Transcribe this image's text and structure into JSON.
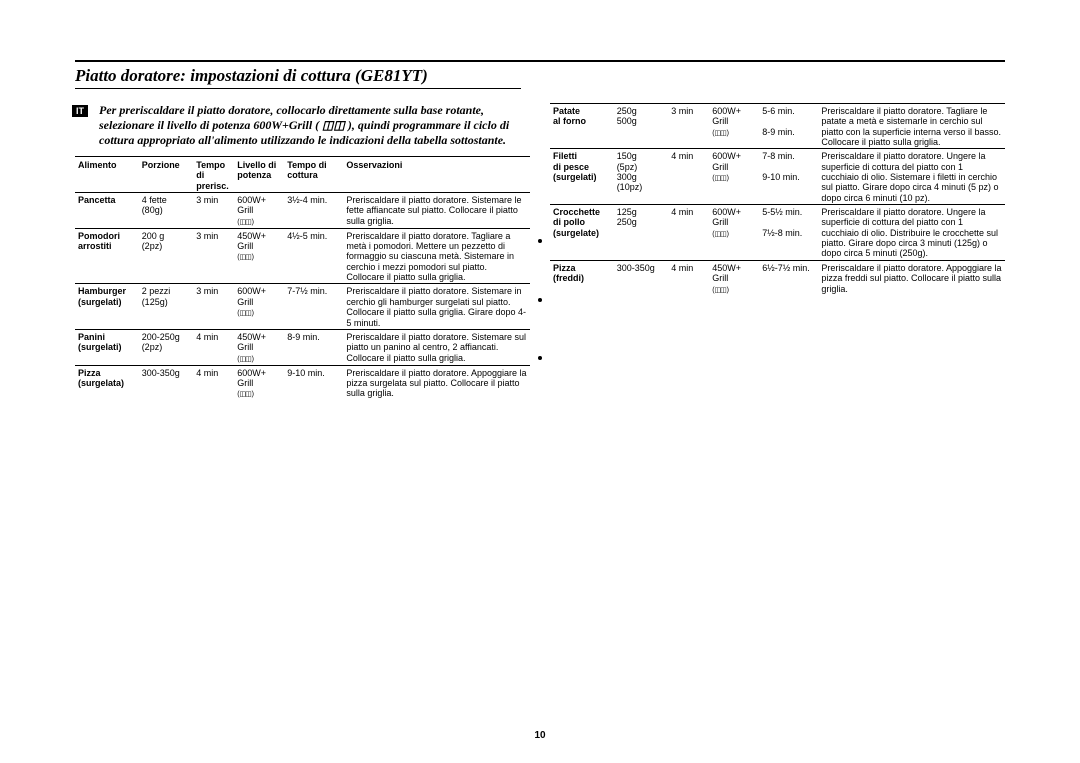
{
  "lang_badge": "IT",
  "title": "Piatto doratore: impostazioni di cottura (GE81YT)",
  "intro": "Per preriscaldare il piatto doratore, collocarlo direttamente sulla base rotante, selezionare il livello di potenza 600W+Grill ( ◫◫ ), quindi programmare il ciclo di cottura appropriato all'alimento utilizzando le indicazioni della tabella sottostante.",
  "grill_icon": "( ◫◫ )",
  "page_number": "10",
  "headers": {
    "alimento": "Alimento",
    "porzione": "Porzione",
    "tempo_pre": "Tempo di prerisc.",
    "livello": "Livello di potenza",
    "tempo_cott": "Tempo di cottura",
    "osservazioni": "Osservazioni"
  },
  "rows_left": [
    {
      "food": "Pancetta",
      "porzione": "4 fette (80g)",
      "tempo": "3 min",
      "livello": "600W+\nGrill",
      "tcott": "3½-4 min.",
      "oss": "Preriscaldare il piatto doratore. Sistemare le fette affiancate sul piatto. Collocare il piatto sulla griglia."
    },
    {
      "food": "Pomodori arrostiti",
      "porzione": "200 g (2pz)",
      "tempo": "3 min",
      "livello": "450W+\nGrill",
      "tcott": "4½-5 min.",
      "oss": "Preriscaldare il piatto doratore. Tagliare a metà i pomodori. Mettere un pezzetto di formaggio su ciascuna metà. Sistemare in cerchio i mezzi pomodori sul piatto. Collocare il piatto sulla griglia."
    },
    {
      "food": "Hamburger (surgelati)",
      "porzione": "2 pezzi (125g)",
      "tempo": "3 min",
      "livello": "600W+\nGrill",
      "tcott": "7-7½ min.",
      "oss": "Preriscaldare il piatto doratore. Sistemare in cerchio gli hamburger surgelati sul piatto. Collocare il piatto sulla griglia. Girare dopo 4-5 minuti."
    },
    {
      "food": "Panini (surgelati)",
      "porzione": "200-250g (2pz)",
      "tempo": "4 min",
      "livello": "450W+\nGrill",
      "tcott": "8-9 min.",
      "oss": "Preriscaldare il piatto doratore. Sistemare sul piatto un panino al centro, 2 affiancati. Collocare il piatto sulla griglia."
    },
    {
      "food": "Pizza (surgelata)",
      "porzione": "300-350g",
      "tempo": "4 min",
      "livello": "600W+\nGrill",
      "tcott": "9-10 min.",
      "oss": "Preriscaldare il piatto doratore. Appoggiare la pizza surgelata sul piatto. Collocare il piatto sulla griglia."
    }
  ],
  "rows_right": [
    {
      "food": "Patate al forno",
      "porzione_a": "250g",
      "porzione_b": "500g",
      "tempo": "3 min",
      "livello": "600W+\nGrill",
      "tcott_a": "5-6 min.",
      "tcott_b": "8-9 min.",
      "oss": "Preriscaldare il piatto doratore. Tagliare le patate a metà e sistemarle in cerchio sul piatto con la superficie interna verso il basso. Collocare il piatto sulla griglia."
    },
    {
      "food": "Filetti di pesce (surgelati)",
      "porzione_a": "150g (5pz)",
      "porzione_b": "300g (10pz)",
      "tempo": "4 min",
      "livello": "600W+\nGrill",
      "tcott_a": "7-8 min.",
      "tcott_b": "9-10 min.",
      "oss": "Preriscaldare il piatto doratore. Ungere la superficie di cottura del piatto con 1 cucchiaio di olio. Sistemare i filetti in cerchio sul piatto. Girare dopo circa 4 minuti (5 pz) o dopo circa 6 minuti (10 pz)."
    },
    {
      "food": "Crocchette di pollo (surgelate)",
      "porzione_a": "125g",
      "porzione_b": "250g",
      "tempo": "4 min",
      "livello": "600W+\nGrill",
      "tcott_a": "5-5½ min.",
      "tcott_b": "7½-8 min.",
      "oss": "Preriscaldare il piatto doratore. Ungere la superficie di cottura del piatto con 1 cucchiaio di olio. Distribuire le crocchette sul piatto. Girare dopo circa 3 minuti (125g) o dopo circa 5 minuti (250g)."
    },
    {
      "food": "Pizza (freddi)",
      "porzione_a": "300-350g",
      "porzione_b": "",
      "tempo": "4 min",
      "livello": "450W+\nGrill",
      "tcott_a": "6½-7½ min.",
      "tcott_b": "",
      "oss": "Preriscaldare il piatto doratore. Appoggiare la pizza freddi sul piatto. Collocare il piatto sulla griglia."
    }
  ]
}
